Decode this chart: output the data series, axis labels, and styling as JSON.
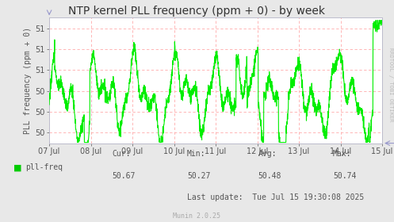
{
  "title": "NTP kernel PLL frequency (ppm + 0) - by week",
  "ylabel": "PLL frequency (ppm + 0)",
  "line_color": "#00ee00",
  "line_width": 0.8,
  "bg_color": "#e8e8e8",
  "plot_bg_color": "#ffffff",
  "grid_color": "#ffaaaa",
  "xlabel_dates": [
    "07 Jul",
    "08 Jul",
    "09 Jul",
    "10 Jul",
    "11 Jul",
    "12 Jul",
    "13 Jul",
    "14 Jul",
    "15 Jul"
  ],
  "legend_label": "pll-freq",
  "legend_color": "#00cc00",
  "stats_cur": "50.67",
  "stats_min": "50.27",
  "stats_avg": "50.48",
  "stats_max": "50.74",
  "last_update": "Last update:  Tue Jul 15 19:30:08 2025",
  "munin_text": "Munin 2.0.25",
  "watermark": "RRDTOOL / TOBI OETIKER",
  "title_fontsize": 10,
  "axis_fontsize": 7,
  "stats_fontsize": 7,
  "ylim_low": 49.87,
  "ylim_high": 51.38,
  "ytick_vals": [
    50.0,
    50.25,
    50.5,
    50.75,
    51.0,
    51.25
  ],
  "ytick_labels": [
    "50",
    "50",
    "50",
    "51",
    "51",
    "51"
  ]
}
